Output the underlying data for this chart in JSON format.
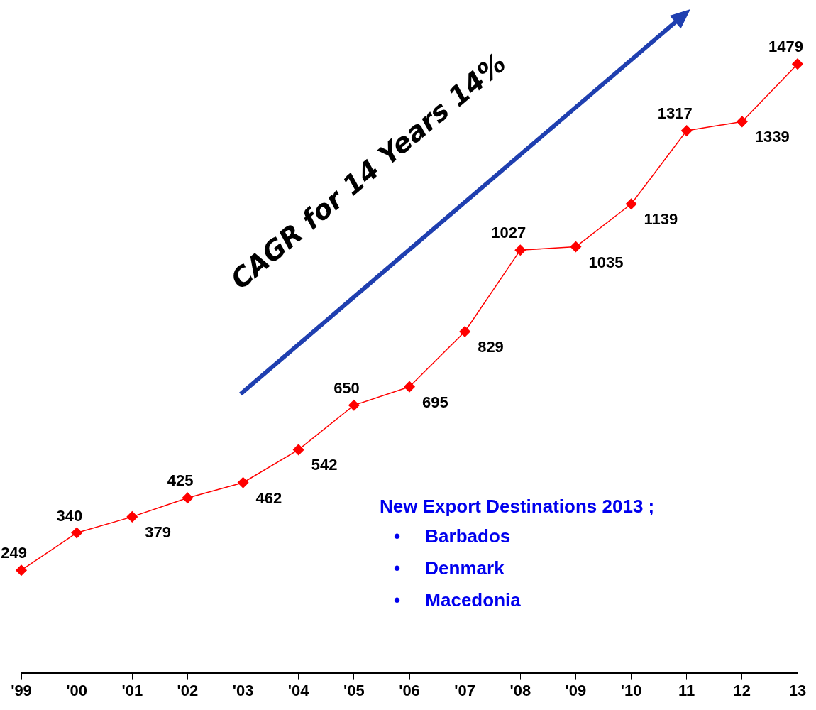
{
  "chart_data": {
    "type": "line",
    "categories": [
      "'99",
      "'00",
      "'01",
      "'02",
      "'03",
      "'04",
      "'05",
      "'06",
      "'07",
      "'08",
      "'09",
      "'10",
      "11",
      "12",
      "13"
    ],
    "values": [
      249,
      340,
      379,
      425,
      462,
      542,
      650,
      695,
      829,
      1027,
      1035,
      1139,
      1317,
      1339,
      1479
    ],
    "color": "#ff0000",
    "marker": "diamond",
    "line_style": "solid",
    "data_labels": true,
    "grid": false,
    "legend": false,
    "tick_labels": "x",
    "annotations": [
      "CAGR for 14 Years 14%",
      "New Export Destinations 2013 ;",
      "• Barbados",
      "• Denmark",
      "• Macedonia"
    ]
  }
}
